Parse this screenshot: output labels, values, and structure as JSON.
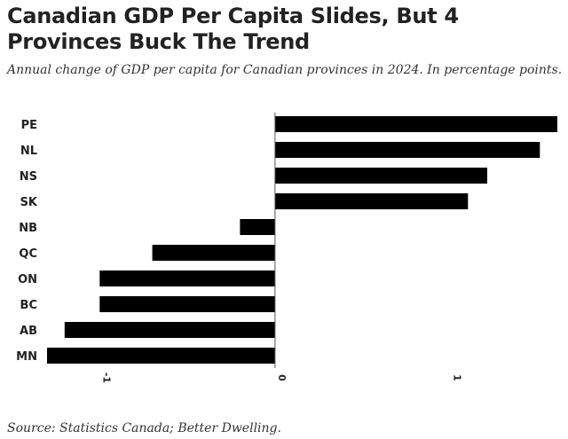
{
  "header": {
    "title": "Canadian GDP Per Capita Slides, But 4 Provinces Buck The Trend",
    "subtitle": "Annual change of GDP per capita for Canadian provinces in 2024. In percentage points."
  },
  "footer": {
    "source": "Source: Statistics Canada; Better Dwelling."
  },
  "colors": {
    "bar": "#000000",
    "axis": "#555555",
    "text": "#222222"
  },
  "chart_data": {
    "type": "bar",
    "orientation": "horizontal",
    "title": "Canadian GDP Per Capita Slides, But 4 Provinces Buck The Trend",
    "subtitle": "Annual change of GDP per capita for Canadian provinces in 2024. In percentage points.",
    "categories": [
      "PE",
      "NL",
      "NS",
      "SK",
      "NB",
      "QC",
      "ON",
      "BC",
      "AB",
      "MN"
    ],
    "values": [
      1.61,
      1.51,
      1.21,
      1.1,
      -0.2,
      -0.7,
      -1.0,
      -1.0,
      -1.2,
      -1.3
    ],
    "xlim": [
      -1.3,
      1.61
    ],
    "xticks": [
      -1,
      0,
      1
    ],
    "xtick_labels": [
      "-1",
      "0",
      "1"
    ],
    "xlabel": "",
    "ylabel": "",
    "grid": false,
    "legend": "none"
  }
}
